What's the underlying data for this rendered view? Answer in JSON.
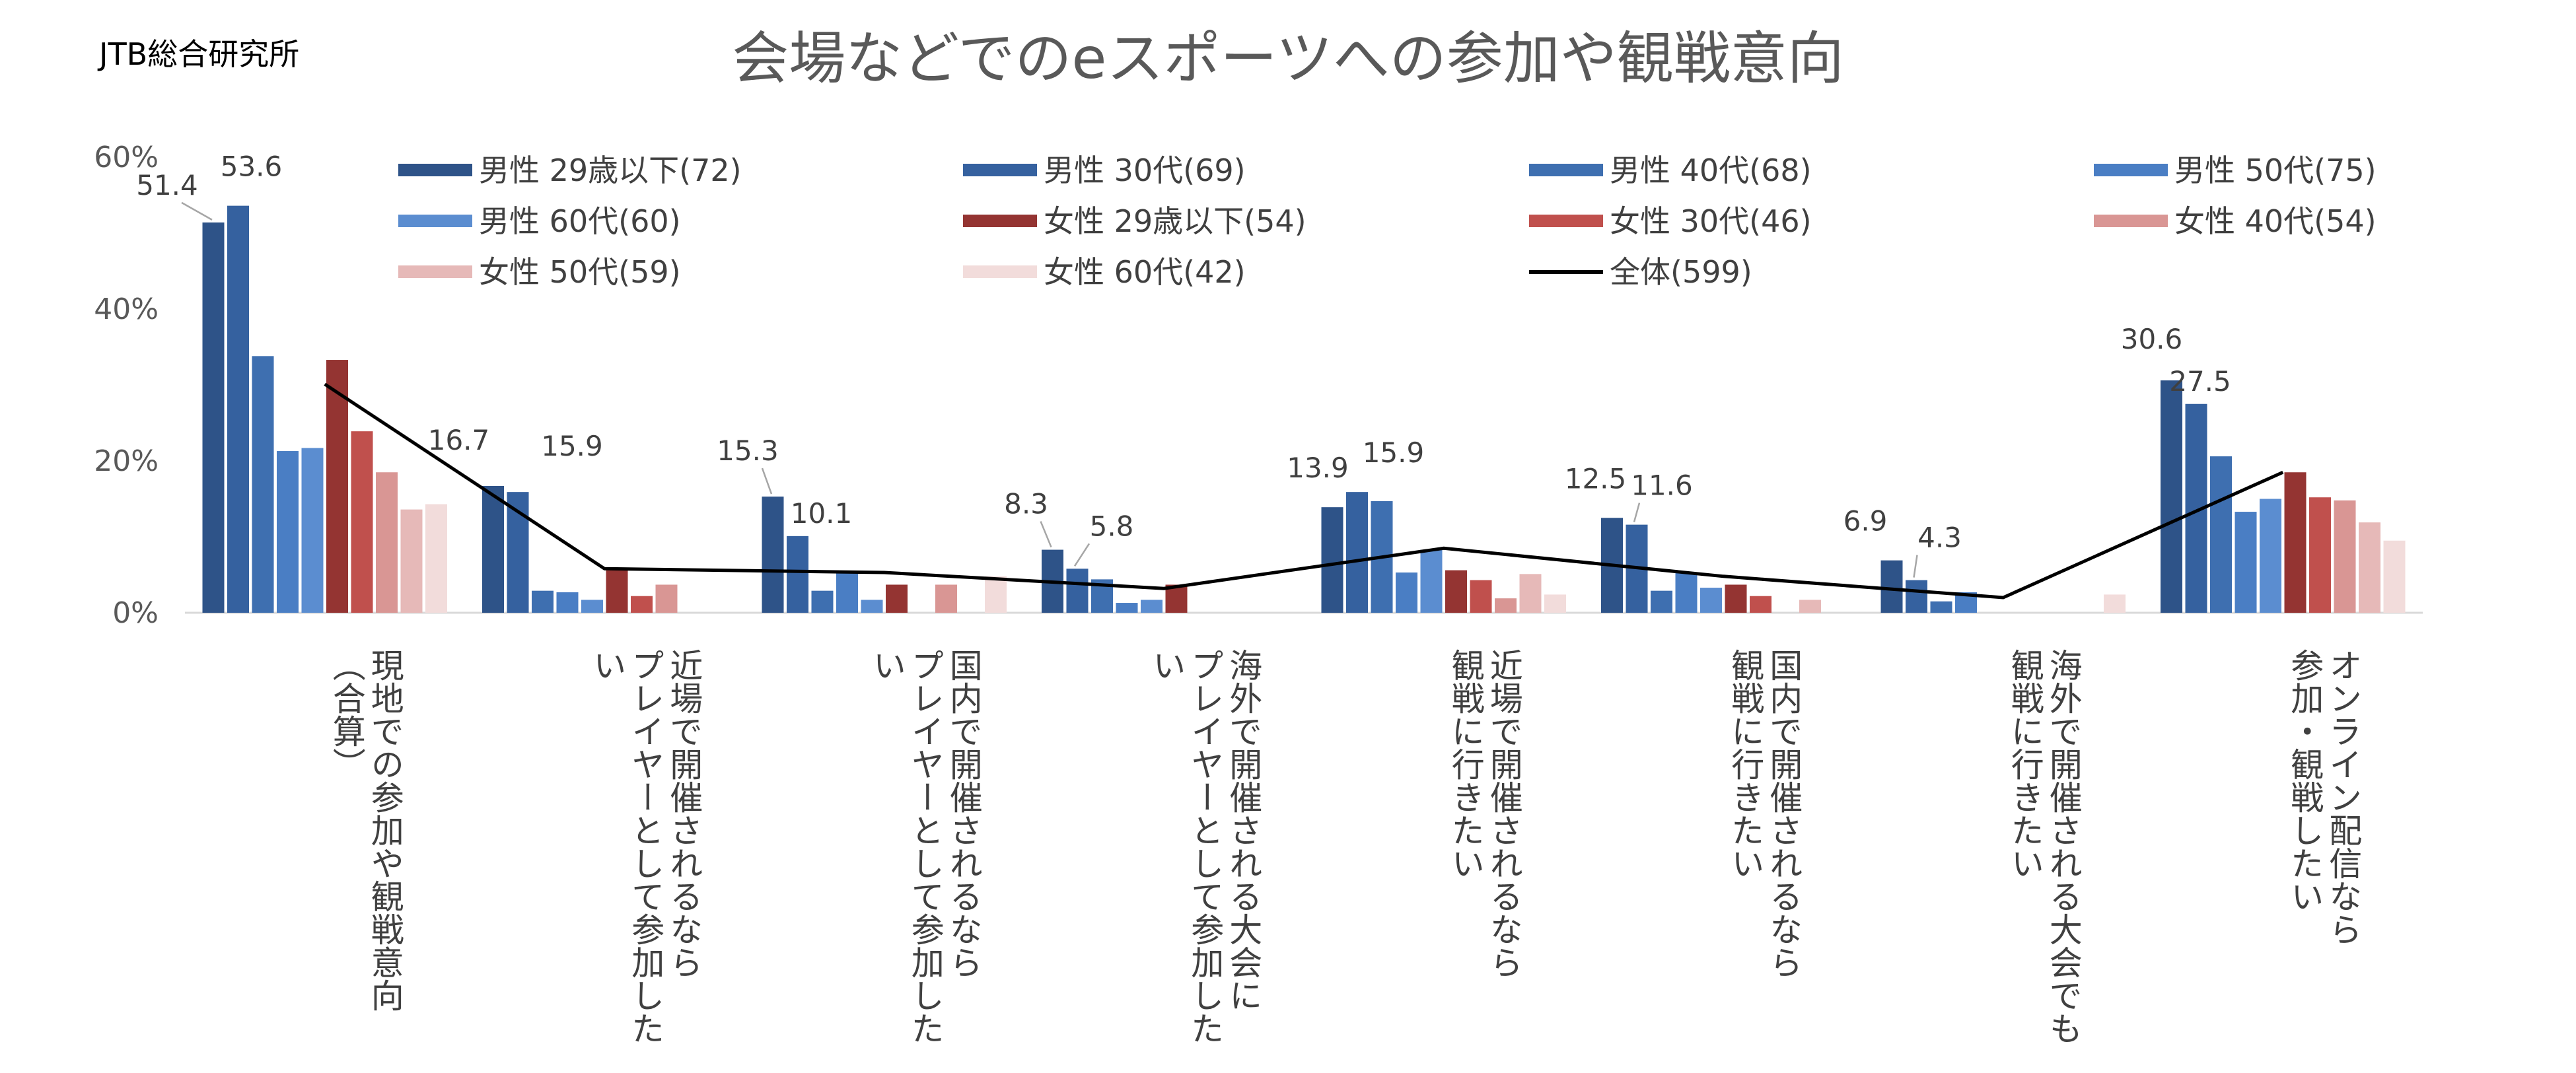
{
  "source_label": "JTB総合研究所",
  "chart_data": {
    "type": "bar",
    "title": "会場などでのeスポーツへの参加や観戦意向",
    "ylim": [
      0,
      60
    ],
    "yticks": [
      0,
      20,
      40,
      60
    ],
    "ytick_labels": [
      "0%",
      "20%",
      "40%",
      "60%"
    ],
    "grid": false,
    "legend_position": "top",
    "categories": [
      "現地での参加や観戦意向\n（合算）",
      "近場で開催されるなら\nプレイヤーとして参加した\nい",
      "国内で開催されるなら\nプレイヤーとして参加した\nい",
      "海外で開催される大会に\nプレイヤーとして参加した\nい",
      "近場で開催されるなら\n観戦に行きたい",
      "国内で開催されるなら\n観戦に行きたい",
      "海外で開催される大会でも\n観戦に行きたい",
      "オンライン配信なら\n参加・観戦したい"
    ],
    "series": [
      {
        "name": "男性 29歳以下(72)",
        "color": "#2e5388",
        "values": [
          51.4,
          16.7,
          15.3,
          8.3,
          13.9,
          12.5,
          6.9,
          30.6
        ],
        "labels": [
          true,
          true,
          true,
          true,
          true,
          true,
          true,
          true
        ]
      },
      {
        "name": "男性 30代(69)",
        "color": "#35619f",
        "values": [
          53.6,
          15.9,
          10.1,
          5.8,
          15.9,
          11.6,
          4.3,
          27.5
        ],
        "labels": [
          true,
          true,
          true,
          true,
          true,
          true,
          true,
          true
        ]
      },
      {
        "name": "男性 40代(68)",
        "color": "#3e6fb0",
        "values": [
          33.8,
          2.9,
          2.9,
          4.4,
          14.7,
          2.9,
          1.5,
          20.6
        ]
      },
      {
        "name": "男性 50代(75)",
        "color": "#4a7ec4",
        "values": [
          21.3,
          2.7,
          5.3,
          1.3,
          5.3,
          5.3,
          2.7,
          13.3
        ]
      },
      {
        "name": "男性 60代(60)",
        "color": "#5b8dd0",
        "values": [
          21.7,
          1.7,
          1.7,
          1.7,
          8.3,
          3.3,
          0,
          15.0
        ]
      },
      {
        "name": "女性 29歳以下(54)",
        "color": "#943432",
        "values": [
          33.3,
          5.6,
          3.7,
          3.7,
          5.6,
          3.7,
          0,
          18.5
        ]
      },
      {
        "name": "女性 30代(46)",
        "color": "#c0504d",
        "values": [
          23.9,
          2.2,
          0,
          0,
          4.3,
          2.2,
          0,
          15.2
        ]
      },
      {
        "name": "女性 40代(54)",
        "color": "#d99694",
        "values": [
          18.5,
          3.7,
          3.7,
          0,
          1.9,
          0,
          0,
          14.8
        ]
      },
      {
        "name": "女性 50代(59)",
        "color": "#e6b9b8",
        "values": [
          13.6,
          0,
          0,
          0,
          5.1,
          1.7,
          0,
          11.9
        ]
      },
      {
        "name": "女性 60代(42)",
        "color": "#f2dcdb",
        "values": [
          14.3,
          0,
          4.8,
          0,
          2.4,
          0,
          2.4,
          9.5
        ]
      }
    ],
    "line_series": {
      "name": "全体(599)",
      "color": "#000000",
      "values": [
        30.1,
        5.8,
        5.3,
        3.2,
        8.5,
        4.8,
        2.0,
        18.5
      ]
    }
  }
}
